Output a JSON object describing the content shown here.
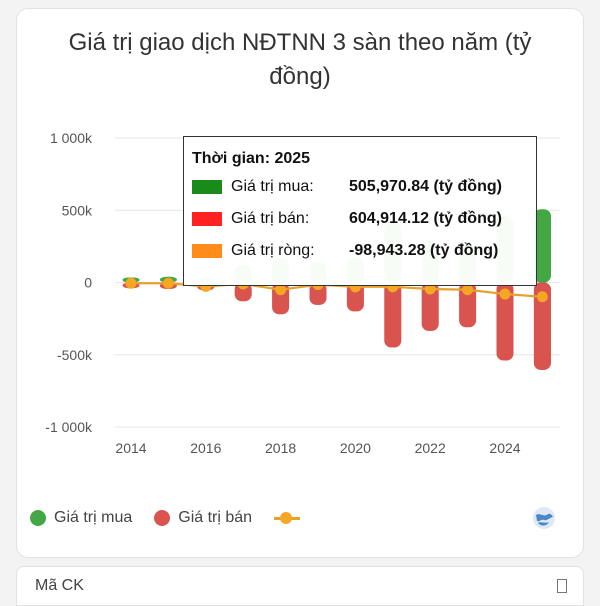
{
  "chart_data": {
    "type": "bar",
    "title": "Giá trị giao dịch NĐTNN 3 sàn theo năm (tỷ đồng)",
    "title_lines": [
      "Giá trị giao dịch NĐTNN 3 sàn theo năm (tỷ",
      "đồng)"
    ],
    "categories": [
      "2014",
      "2015",
      "2016",
      "2017",
      "2018",
      "2019",
      "2020",
      "2021",
      "2022",
      "2023",
      "2024",
      "2025"
    ],
    "x_tick_labels": [
      "2014",
      "2016",
      "2018",
      "2020",
      "2022",
      "2024"
    ],
    "y_ticks": [
      1000000,
      500000,
      0,
      -500000,
      -1000000
    ],
    "y_tick_labels": [
      "1 000k",
      "500k",
      "0",
      "-500k",
      "-1 000k"
    ],
    "ylim": [
      -1000000,
      1000000
    ],
    "grid": true,
    "series": [
      {
        "name": "Giá trị mua",
        "kind": "bar",
        "color": "#2e9e2e",
        "values": [
          35000,
          40000,
          28000,
          120000,
          170000,
          140000,
          170000,
          420000,
          290000,
          260000,
          460000,
          505970.84
        ]
      },
      {
        "name": "Giá trị bán",
        "kind": "bar",
        "color": "#d9534f",
        "values": [
          -40000,
          -45000,
          -55000,
          -130000,
          -220000,
          -155000,
          -200000,
          -450000,
          -335000,
          -310000,
          -540000,
          -604914.12
        ]
      },
      {
        "name": "Giá trị ròng",
        "kind": "line",
        "color": "#f5a623",
        "values": [
          -5000,
          -5000,
          -27000,
          -10000,
          -50000,
          -15000,
          -30000,
          -30000,
          -45000,
          -50000,
          -80000,
          -98943.28
        ]
      }
    ],
    "legend_position": "bottom-left"
  },
  "tooltip": {
    "title": "Thời gian: 2025",
    "rows": [
      {
        "label": "Giá trị mua:",
        "value": "505,970.84 (tỷ đồng)",
        "color": "#1a8a1a"
      },
      {
        "label": "Giá trị bán:",
        "value": "604,914.12 (tỷ đồng)",
        "color": "#ff2222"
      },
      {
        "label": "Giá trị ròng:",
        "value": "-98,943.28 (tỷ đồng)",
        "color": "#ff8c1a"
      }
    ]
  },
  "legend": {
    "buy": {
      "label": "Giá trị mua",
      "color": "#43a843"
    },
    "sell": {
      "label": "Giá trị bán",
      "color": "#d9534f"
    },
    "net": {
      "color": "#f5a623"
    }
  },
  "icons": {
    "corner": "globe-icon",
    "filter": "filter-icon"
  },
  "search": {
    "placeholder": "Mã CK"
  }
}
